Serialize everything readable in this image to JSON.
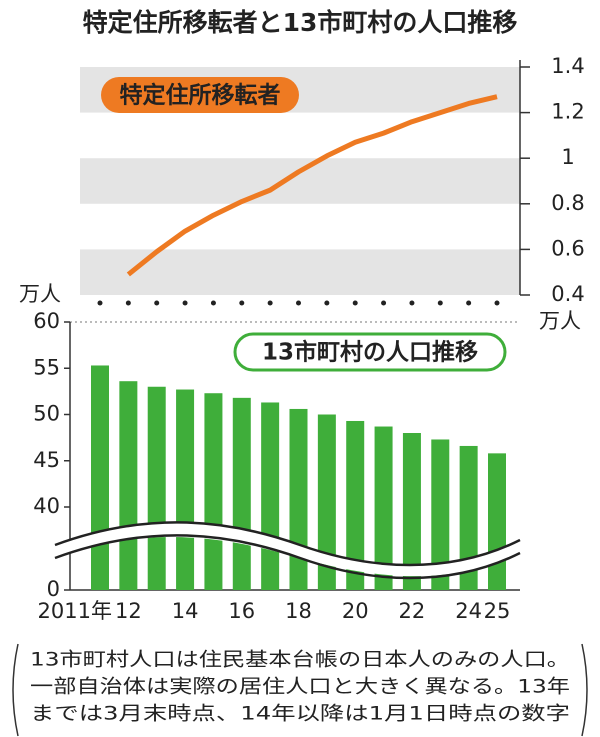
{
  "title": "特定住所移転者と13市町村の人口推移",
  "note": [
    "13市町村人口は住民基本台帳の日本人のみの人口。",
    "一部自治体は実際の居住人口と大きく異なる。13年",
    "までは3月末時点、14年以降は1月1日時点の数字"
  ],
  "chart_data": {
    "type": "bar",
    "categories": [
      "2011年",
      "12",
      null,
      "14",
      null,
      "16",
      null,
      "18",
      null,
      "20",
      null,
      "22",
      null,
      "24",
      "25"
    ],
    "series": [
      {
        "name": "13市町村の人口推移",
        "color": "#3fae3a",
        "values": [
          55.3,
          53.6,
          53.0,
          52.7,
          52.3,
          51.8,
          51.3,
          50.6,
          50.0,
          49.3,
          48.7,
          48.0,
          47.3,
          46.6,
          45.8
        ]
      },
      {
        "name": "特定住所移転者",
        "color": "#ee7a22",
        "axis": "y2",
        "values": [
          null,
          0.49,
          0.59,
          0.68,
          0.75,
          0.81,
          0.86,
          0.94,
          1.01,
          1.07,
          1.11,
          1.16,
          1.2,
          1.24,
          1.27
        ]
      }
    ],
    "ylabel": "万人",
    "ylim": [
      0,
      60
    ],
    "yticks": [
      0,
      40,
      45,
      50,
      55,
      60
    ],
    "y_break": [
      0,
      40
    ],
    "y2label": "万人",
    "y2lim": [
      0.4,
      1.4
    ],
    "y2ticks": [
      0.4,
      0.6,
      0.8,
      1.0,
      1.2,
      1.4
    ]
  }
}
